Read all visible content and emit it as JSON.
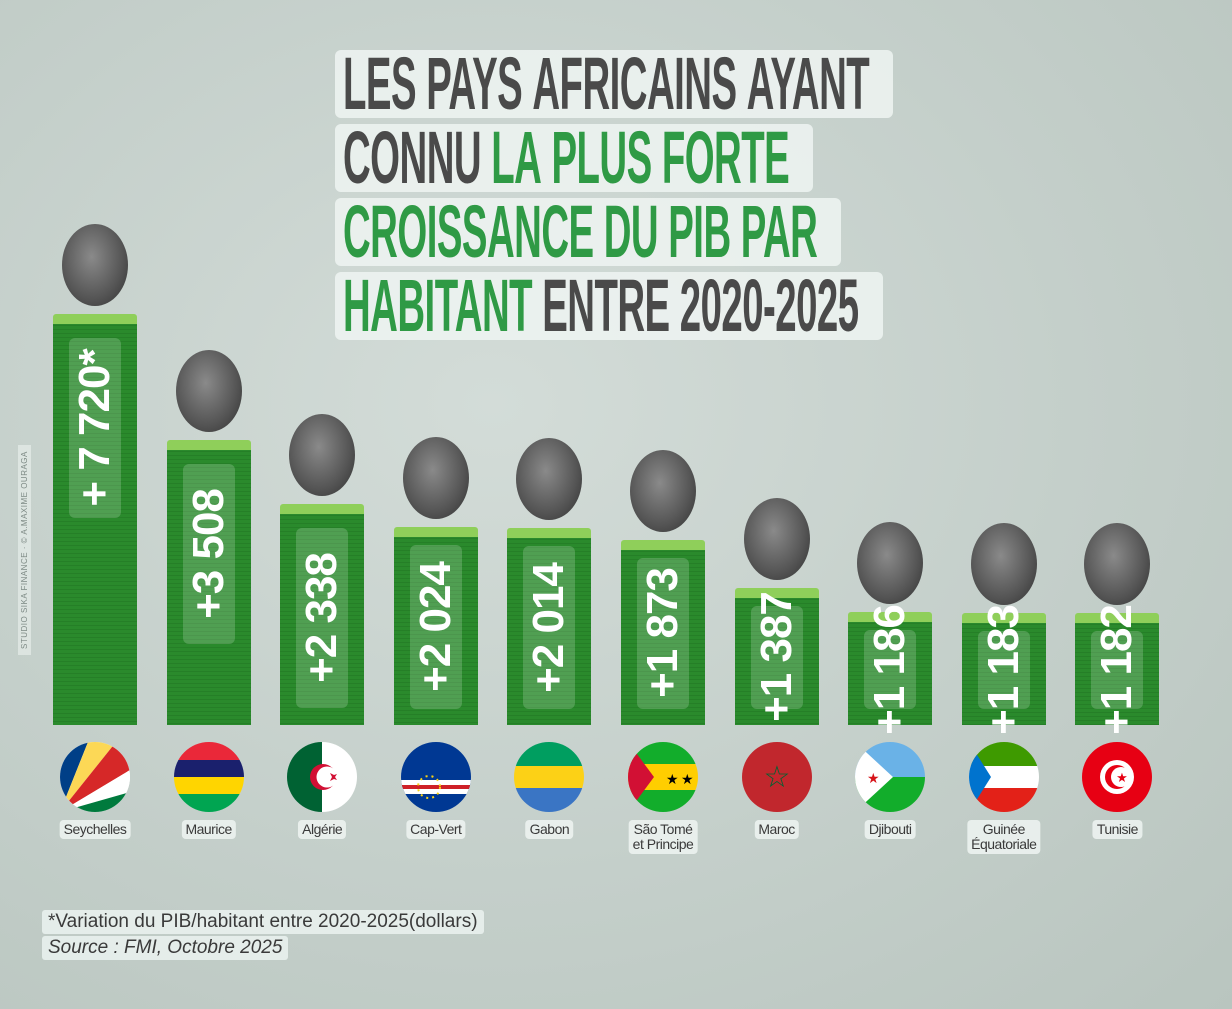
{
  "title": {
    "line1": [
      {
        "text": "LES PAYS AFRICAINS AYANT",
        "color": "gray"
      }
    ],
    "line2": [
      {
        "text": "CONNU ",
        "color": "gray"
      },
      {
        "text": "LA PLUS FORTE",
        "color": "green"
      }
    ],
    "line3": [
      {
        "text": "CROISSANCE DU PIB PAR",
        "color": "green"
      }
    ],
    "line4": [
      {
        "text": "HABITANT",
        "color": "green"
      },
      {
        "text": " ENTRE 2020-2025",
        "color": "gray"
      }
    ]
  },
  "colors": {
    "gray": "#4a4a4a",
    "green": "#2f9a45",
    "bar": "#2a8a2c",
    "bar_cap": "#8fcf5a"
  },
  "credit": "STUDIO SIKA FINANCE · © A.MAXIME OURAGA",
  "chart_data": {
    "type": "bar",
    "title": "LES PAYS AFRICAINS AYANT CONNU LA PLUS FORTE CROISSANCE DU PIB PAR HABITANT ENTRE 2020-2025",
    "categories": [
      "Seychelles",
      "Maurice",
      "Algérie",
      "Cap-Vert",
      "Gabon",
      "São Tomé et Principe",
      "Maroc",
      "Djibouti",
      "Guinée Équatoriale",
      "Tunisie"
    ],
    "values": [
      7720,
      3508,
      2338,
      2024,
      2014,
      1873,
      1387,
      1186,
      1183,
      1182
    ],
    "data_labels": [
      "+ 7 720*",
      "+3 508",
      "+2 338",
      "+2 024",
      "+2 014",
      "+1 873",
      "+1 387",
      "+1 186",
      "+1 183",
      "+1 182"
    ],
    "name_lines": [
      [
        "Seychelles"
      ],
      [
        "Maurice"
      ],
      [
        "Algérie"
      ],
      [
        "Cap-Vert"
      ],
      [
        "Gabon"
      ],
      [
        "São Tomé",
        "et Principe"
      ],
      [
        "Maroc"
      ],
      [
        "Djibouti"
      ],
      [
        "Guinée",
        "Équatoriale"
      ],
      [
        "Tunisie"
      ]
    ],
    "flag_icons": [
      "seychelles-flag",
      "mauritius-flag",
      "algeria-flag",
      "cape-verde-flag",
      "gabon-flag",
      "sao-tome-flag",
      "morocco-flag",
      "djibouti-flag",
      "equatorial-guinea-flag",
      "tunisia-flag"
    ],
    "orientation": "vertical",
    "grid": false,
    "axes_visible": false
  },
  "footnote": "*Variation du PIB/habitant entre 2020-2025(dollars)",
  "source": "Source : FMI, Octobre 2025"
}
